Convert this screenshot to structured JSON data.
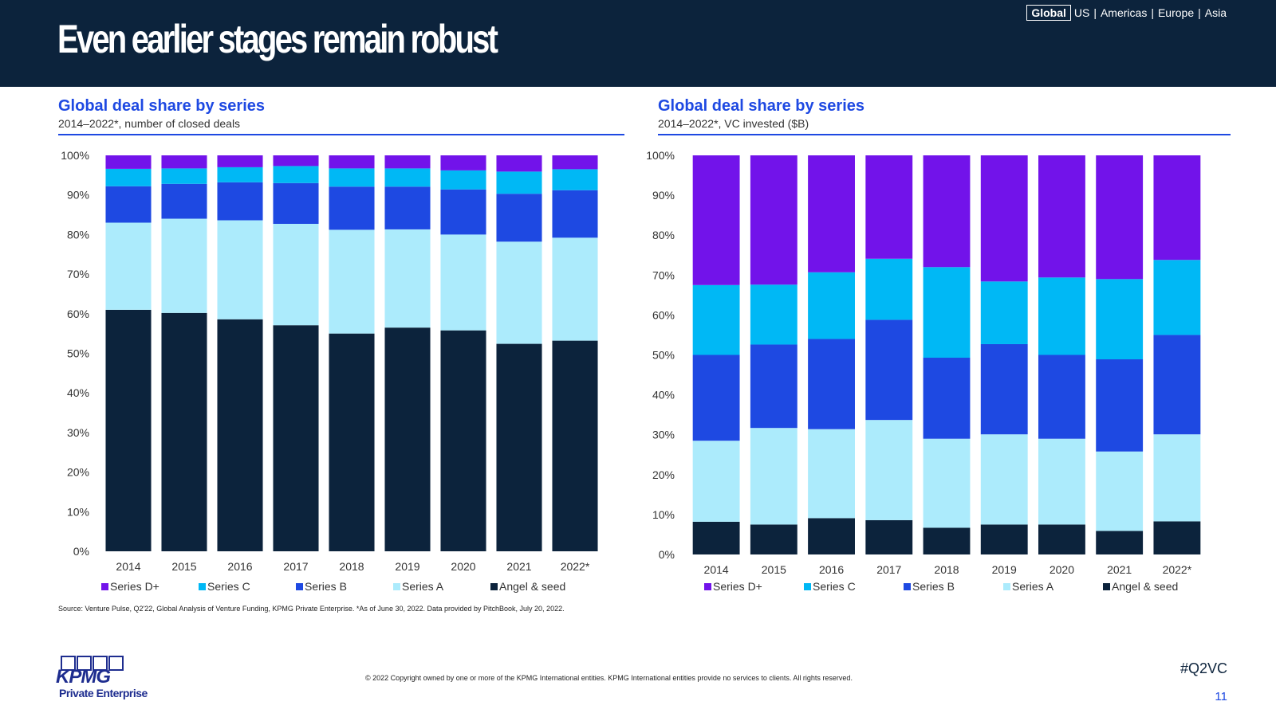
{
  "header": {
    "title": "Even earlier stages remain robust",
    "regions": [
      "Global",
      "US",
      "Americas",
      "Europe",
      "Asia"
    ],
    "active_region": "Global"
  },
  "colors": {
    "navy": "#0c233c",
    "accent_blue": "#1e49e2",
    "series_d": "#7213ea",
    "series_c": "#00b8f5",
    "series_b": "#1e49e2",
    "series_a": "#acebfc",
    "angel_seed": "#0c233c"
  },
  "chart_data": [
    {
      "type": "bar",
      "stacked": true,
      "title": "Global deal share by series",
      "subtitle": "2014–2022*, number of closed deals",
      "categories": [
        "2014",
        "2015",
        "2016",
        "2017",
        "2018",
        "2019",
        "2020",
        "2021",
        "2022*"
      ],
      "ylim": [
        0,
        100
      ],
      "yticks": [
        "0%",
        "10%",
        "20%",
        "30%",
        "40%",
        "50%",
        "60%",
        "70%",
        "80%",
        "90%",
        "100%"
      ],
      "legend_position": "bottom",
      "series": [
        {
          "name": "Angel & seed",
          "color": "#0c233c",
          "values": [
            61,
            60.2,
            58.6,
            57.1,
            55,
            56.5,
            55.8,
            52.4,
            53.2
          ]
        },
        {
          "name": "Series A",
          "color": "#acebfc",
          "values": [
            22,
            23.8,
            25,
            25.6,
            26.2,
            24.8,
            24.2,
            25.8,
            26
          ]
        },
        {
          "name": "Series B",
          "color": "#1e49e2",
          "values": [
            9.2,
            8.8,
            9.6,
            10.3,
            10.9,
            10.8,
            11.4,
            12.1,
            12
          ]
        },
        {
          "name": "Series C",
          "color": "#00b8f5",
          "values": [
            4.4,
            3.9,
            3.8,
            4.3,
            4.6,
            4.6,
            4.8,
            5.6,
            5.3
          ]
        },
        {
          "name": "Series D+",
          "color": "#7213ea",
          "values": [
            3.4,
            3.3,
            3,
            2.7,
            3.3,
            3.3,
            3.8,
            4.1,
            3.5
          ]
        }
      ],
      "legend": [
        "Series D+",
        "Series C",
        "Series B",
        "Series A",
        "Angel & seed"
      ]
    },
    {
      "type": "bar",
      "stacked": true,
      "title": "Global deal share by series",
      "subtitle": "2014–2022*, VC invested ($B)",
      "categories": [
        "2014",
        "2015",
        "2016",
        "2017",
        "2018",
        "2019",
        "2020",
        "2021",
        "2022*"
      ],
      "ylim": [
        0,
        100
      ],
      "yticks": [
        "0%",
        "10%",
        "20%",
        "30%",
        "40%",
        "50%",
        "60%",
        "70%",
        "80%",
        "90%",
        "100%"
      ],
      "legend_position": "bottom",
      "series": [
        {
          "name": "Angel & seed",
          "color": "#0c233c",
          "values": [
            8.2,
            7.5,
            9.1,
            8.6,
            6.7,
            7.5,
            7.5,
            5.9,
            8.3
          ]
        },
        {
          "name": "Series A",
          "color": "#acebfc",
          "values": [
            20.3,
            24.2,
            22.3,
            25.1,
            22.3,
            22.6,
            21.5,
            19.9,
            21.8
          ]
        },
        {
          "name": "Series B",
          "color": "#1e49e2",
          "values": [
            21.5,
            20.9,
            22.6,
            25.1,
            20.3,
            22.6,
            21,
            23.1,
            24.9
          ]
        },
        {
          "name": "Series C",
          "color": "#00b8f5",
          "values": [
            17.5,
            15,
            16.7,
            15.3,
            22.7,
            15.7,
            19.4,
            20.1,
            18.8
          ]
        },
        {
          "name": "Series D+",
          "color": "#7213ea",
          "values": [
            32.5,
            32.4,
            29.3,
            25.9,
            28,
            31.6,
            30.6,
            31,
            26.2
          ]
        }
      ],
      "legend": [
        "Series D+",
        "Series C",
        "Series B",
        "Series A",
        "Angel & seed"
      ]
    }
  ],
  "footer": {
    "source": "Source: Venture Pulse, Q2'22, Global Analysis of Venture Funding, KPMG Private Enterprise. *As of June 30, 2022. Data provided by PitchBook, July 20, 2022.",
    "copyright": "© 2022 Copyright owned by one or more of the KPMG International entities. KPMG International entities provide no services to clients. All rights reserved.",
    "hashtag": "#Q2VC",
    "page_number": "11",
    "logo_text": "KPMG",
    "logo_subtext": "Private Enterprise"
  }
}
